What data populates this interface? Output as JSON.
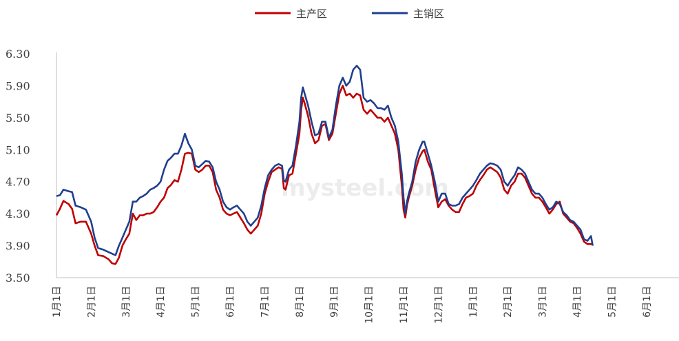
{
  "chart_data": {
    "type": "line",
    "title": "",
    "xlabel": "",
    "ylabel": "",
    "ylim": [
      3.5,
      6.3
    ],
    "yticks": [
      "6.30",
      "5.90",
      "5.50",
      "5.10",
      "4.70",
      "4.30",
      "3.90",
      "3.50"
    ],
    "xticks": [
      "1月1日",
      "2月1日",
      "3月1日",
      "4月1日",
      "5月1日",
      "6月1日",
      "7月1日",
      "8月1日",
      "9月1日",
      "10月1日",
      "11月1日",
      "12月1日",
      "1月1日",
      "2月1日",
      "3月1日",
      "4月1日",
      "5月1日",
      "6月1日"
    ],
    "legend_position": "top-center",
    "grid": false,
    "watermark": "mysteel.com",
    "series": [
      {
        "name": "主产区",
        "color": "#C00000",
        "points": [
          [
            0,
            4.28
          ],
          [
            0.1,
            4.36
          ],
          [
            0.2,
            4.46
          ],
          [
            0.35,
            4.42
          ],
          [
            0.45,
            4.36
          ],
          [
            0.55,
            4.18
          ],
          [
            0.7,
            4.2
          ],
          [
            0.85,
            4.2
          ],
          [
            1.0,
            4.05
          ],
          [
            1.1,
            3.9
          ],
          [
            1.2,
            3.78
          ],
          [
            1.35,
            3.77
          ],
          [
            1.5,
            3.73
          ],
          [
            1.6,
            3.68
          ],
          [
            1.7,
            3.67
          ],
          [
            1.8,
            3.75
          ],
          [
            1.9,
            3.9
          ],
          [
            2.0,
            3.98
          ],
          [
            2.1,
            4.05
          ],
          [
            2.2,
            4.3
          ],
          [
            2.3,
            4.22
          ],
          [
            2.4,
            4.28
          ],
          [
            2.5,
            4.28
          ],
          [
            2.6,
            4.3
          ],
          [
            2.7,
            4.3
          ],
          [
            2.8,
            4.32
          ],
          [
            2.9,
            4.38
          ],
          [
            3.0,
            4.45
          ],
          [
            3.1,
            4.5
          ],
          [
            3.2,
            4.62
          ],
          [
            3.3,
            4.66
          ],
          [
            3.4,
            4.72
          ],
          [
            3.5,
            4.7
          ],
          [
            3.6,
            4.85
          ],
          [
            3.7,
            5.05
          ],
          [
            3.8,
            5.06
          ],
          [
            3.9,
            5.05
          ],
          [
            4.0,
            4.85
          ],
          [
            4.1,
            4.82
          ],
          [
            4.2,
            4.85
          ],
          [
            4.3,
            4.9
          ],
          [
            4.4,
            4.9
          ],
          [
            4.5,
            4.82
          ],
          [
            4.6,
            4.6
          ],
          [
            4.7,
            4.5
          ],
          [
            4.8,
            4.35
          ],
          [
            4.9,
            4.3
          ],
          [
            5.0,
            4.28
          ],
          [
            5.1,
            4.3
          ],
          [
            5.2,
            4.32
          ],
          [
            5.3,
            4.25
          ],
          [
            5.4,
            4.18
          ],
          [
            5.5,
            4.1
          ],
          [
            5.6,
            4.05
          ],
          [
            5.7,
            4.1
          ],
          [
            5.8,
            4.15
          ],
          [
            5.9,
            4.3
          ],
          [
            6.0,
            4.55
          ],
          [
            6.1,
            4.7
          ],
          [
            6.2,
            4.82
          ],
          [
            6.3,
            4.85
          ],
          [
            6.4,
            4.88
          ],
          [
            6.5,
            4.86
          ],
          [
            6.55,
            4.62
          ],
          [
            6.6,
            4.6
          ],
          [
            6.7,
            4.78
          ],
          [
            6.8,
            4.8
          ],
          [
            6.9,
            5.05
          ],
          [
            7.0,
            5.3
          ],
          [
            7.05,
            5.6
          ],
          [
            7.1,
            5.75
          ],
          [
            7.15,
            5.68
          ],
          [
            7.25,
            5.52
          ],
          [
            7.35,
            5.3
          ],
          [
            7.45,
            5.18
          ],
          [
            7.55,
            5.22
          ],
          [
            7.65,
            5.4
          ],
          [
            7.75,
            5.42
          ],
          [
            7.85,
            5.22
          ],
          [
            7.95,
            5.3
          ],
          [
            8.05,
            5.55
          ],
          [
            8.15,
            5.8
          ],
          [
            8.25,
            5.9
          ],
          [
            8.35,
            5.78
          ],
          [
            8.45,
            5.8
          ],
          [
            8.55,
            5.75
          ],
          [
            8.65,
            5.8
          ],
          [
            8.75,
            5.78
          ],
          [
            8.85,
            5.6
          ],
          [
            8.95,
            5.55
          ],
          [
            9.05,
            5.6
          ],
          [
            9.15,
            5.55
          ],
          [
            9.25,
            5.5
          ],
          [
            9.35,
            5.5
          ],
          [
            9.45,
            5.45
          ],
          [
            9.55,
            5.5
          ],
          [
            9.65,
            5.4
          ],
          [
            9.75,
            5.3
          ],
          [
            9.85,
            5.1
          ],
          [
            9.95,
            4.65
          ],
          [
            10.0,
            4.35
          ],
          [
            10.05,
            4.25
          ],
          [
            10.1,
            4.4
          ],
          [
            10.15,
            4.5
          ],
          [
            10.25,
            4.65
          ],
          [
            10.35,
            4.85
          ],
          [
            10.45,
            5.0
          ],
          [
            10.55,
            5.08
          ],
          [
            10.6,
            5.1
          ],
          [
            10.7,
            4.95
          ],
          [
            10.8,
            4.85
          ],
          [
            10.9,
            4.6
          ],
          [
            11.0,
            4.38
          ],
          [
            11.1,
            4.45
          ],
          [
            11.2,
            4.48
          ],
          [
            11.3,
            4.4
          ],
          [
            11.4,
            4.35
          ],
          [
            11.5,
            4.32
          ],
          [
            11.6,
            4.32
          ],
          [
            11.7,
            4.42
          ],
          [
            11.8,
            4.5
          ],
          [
            11.9,
            4.52
          ],
          [
            12.0,
            4.55
          ],
          [
            12.1,
            4.65
          ],
          [
            12.2,
            4.72
          ],
          [
            12.3,
            4.78
          ],
          [
            12.4,
            4.85
          ],
          [
            12.5,
            4.88
          ],
          [
            12.6,
            4.85
          ],
          [
            12.7,
            4.82
          ],
          [
            12.8,
            4.75
          ],
          [
            12.9,
            4.6
          ],
          [
            13.0,
            4.55
          ],
          [
            13.1,
            4.65
          ],
          [
            13.2,
            4.7
          ],
          [
            13.3,
            4.8
          ],
          [
            13.4,
            4.8
          ],
          [
            13.5,
            4.75
          ],
          [
            13.6,
            4.65
          ],
          [
            13.7,
            4.55
          ],
          [
            13.8,
            4.5
          ],
          [
            13.9,
            4.5
          ],
          [
            14.0,
            4.45
          ],
          [
            14.1,
            4.38
          ],
          [
            14.2,
            4.3
          ],
          [
            14.3,
            4.35
          ],
          [
            14.4,
            4.42
          ],
          [
            14.5,
            4.45
          ],
          [
            14.6,
            4.3
          ],
          [
            14.7,
            4.25
          ],
          [
            14.8,
            4.2
          ],
          [
            14.9,
            4.18
          ],
          [
            15.0,
            4.12
          ],
          [
            15.1,
            4.05
          ],
          [
            15.2,
            3.95
          ],
          [
            15.3,
            3.92
          ],
          [
            15.45,
            3.92
          ]
        ]
      },
      {
        "name": "主销区",
        "color": "#1F3F8F",
        "points": [
          [
            0,
            4.52
          ],
          [
            0.1,
            4.53
          ],
          [
            0.2,
            4.6
          ],
          [
            0.35,
            4.58
          ],
          [
            0.45,
            4.57
          ],
          [
            0.55,
            4.4
          ],
          [
            0.7,
            4.38
          ],
          [
            0.85,
            4.35
          ],
          [
            1.0,
            4.2
          ],
          [
            1.1,
            4.0
          ],
          [
            1.2,
            3.87
          ],
          [
            1.35,
            3.85
          ],
          [
            1.5,
            3.82
          ],
          [
            1.6,
            3.8
          ],
          [
            1.7,
            3.78
          ],
          [
            1.8,
            3.9
          ],
          [
            1.9,
            4.0
          ],
          [
            2.0,
            4.1
          ],
          [
            2.1,
            4.2
          ],
          [
            2.2,
            4.45
          ],
          [
            2.3,
            4.45
          ],
          [
            2.4,
            4.5
          ],
          [
            2.5,
            4.52
          ],
          [
            2.6,
            4.55
          ],
          [
            2.7,
            4.6
          ],
          [
            2.8,
            4.62
          ],
          [
            2.9,
            4.65
          ],
          [
            3.0,
            4.7
          ],
          [
            3.1,
            4.85
          ],
          [
            3.2,
            4.96
          ],
          [
            3.3,
            5.0
          ],
          [
            3.4,
            5.05
          ],
          [
            3.5,
            5.05
          ],
          [
            3.6,
            5.15
          ],
          [
            3.7,
            5.3
          ],
          [
            3.8,
            5.18
          ],
          [
            3.9,
            5.1
          ],
          [
            4.0,
            4.9
          ],
          [
            4.1,
            4.88
          ],
          [
            4.2,
            4.92
          ],
          [
            4.3,
            4.96
          ],
          [
            4.4,
            4.95
          ],
          [
            4.5,
            4.88
          ],
          [
            4.6,
            4.7
          ],
          [
            4.7,
            4.6
          ],
          [
            4.8,
            4.45
          ],
          [
            4.9,
            4.38
          ],
          [
            5.0,
            4.35
          ],
          [
            5.1,
            4.38
          ],
          [
            5.2,
            4.4
          ],
          [
            5.3,
            4.35
          ],
          [
            5.4,
            4.3
          ],
          [
            5.5,
            4.2
          ],
          [
            5.6,
            4.15
          ],
          [
            5.7,
            4.2
          ],
          [
            5.8,
            4.25
          ],
          [
            5.9,
            4.4
          ],
          [
            6.0,
            4.62
          ],
          [
            6.1,
            4.78
          ],
          [
            6.2,
            4.85
          ],
          [
            6.3,
            4.9
          ],
          [
            6.4,
            4.92
          ],
          [
            6.5,
            4.9
          ],
          [
            6.55,
            4.72
          ],
          [
            6.6,
            4.7
          ],
          [
            6.7,
            4.85
          ],
          [
            6.8,
            4.9
          ],
          [
            6.9,
            5.15
          ],
          [
            7.0,
            5.45
          ],
          [
            7.05,
            5.75
          ],
          [
            7.1,
            5.88
          ],
          [
            7.15,
            5.8
          ],
          [
            7.25,
            5.65
          ],
          [
            7.35,
            5.45
          ],
          [
            7.45,
            5.28
          ],
          [
            7.55,
            5.3
          ],
          [
            7.65,
            5.45
          ],
          [
            7.75,
            5.45
          ],
          [
            7.85,
            5.25
          ],
          [
            7.95,
            5.35
          ],
          [
            8.05,
            5.65
          ],
          [
            8.15,
            5.9
          ],
          [
            8.25,
            6.0
          ],
          [
            8.35,
            5.9
          ],
          [
            8.45,
            5.95
          ],
          [
            8.55,
            6.1
          ],
          [
            8.65,
            6.15
          ],
          [
            8.75,
            6.1
          ],
          [
            8.85,
            5.75
          ],
          [
            8.95,
            5.7
          ],
          [
            9.05,
            5.72
          ],
          [
            9.15,
            5.68
          ],
          [
            9.25,
            5.62
          ],
          [
            9.35,
            5.62
          ],
          [
            9.45,
            5.6
          ],
          [
            9.55,
            5.65
          ],
          [
            9.65,
            5.5
          ],
          [
            9.75,
            5.4
          ],
          [
            9.85,
            5.2
          ],
          [
            9.95,
            4.8
          ],
          [
            10.0,
            4.5
          ],
          [
            10.05,
            4.3
          ],
          [
            10.1,
            4.45
          ],
          [
            10.15,
            4.55
          ],
          [
            10.25,
            4.7
          ],
          [
            10.35,
            4.95
          ],
          [
            10.45,
            5.1
          ],
          [
            10.55,
            5.2
          ],
          [
            10.6,
            5.2
          ],
          [
            10.7,
            5.05
          ],
          [
            10.8,
            4.9
          ],
          [
            10.9,
            4.7
          ],
          [
            11.0,
            4.45
          ],
          [
            11.1,
            4.55
          ],
          [
            11.2,
            4.55
          ],
          [
            11.3,
            4.42
          ],
          [
            11.4,
            4.4
          ],
          [
            11.5,
            4.4
          ],
          [
            11.6,
            4.42
          ],
          [
            11.7,
            4.5
          ],
          [
            11.8,
            4.55
          ],
          [
            11.9,
            4.6
          ],
          [
            12.0,
            4.65
          ],
          [
            12.1,
            4.72
          ],
          [
            12.2,
            4.8
          ],
          [
            12.3,
            4.85
          ],
          [
            12.4,
            4.9
          ],
          [
            12.5,
            4.93
          ],
          [
            12.6,
            4.92
          ],
          [
            12.7,
            4.9
          ],
          [
            12.8,
            4.85
          ],
          [
            12.9,
            4.7
          ],
          [
            13.0,
            4.65
          ],
          [
            13.1,
            4.72
          ],
          [
            13.2,
            4.78
          ],
          [
            13.3,
            4.88
          ],
          [
            13.4,
            4.85
          ],
          [
            13.5,
            4.8
          ],
          [
            13.6,
            4.7
          ],
          [
            13.7,
            4.6
          ],
          [
            13.8,
            4.55
          ],
          [
            13.9,
            4.55
          ],
          [
            14.0,
            4.5
          ],
          [
            14.1,
            4.42
          ],
          [
            14.2,
            4.35
          ],
          [
            14.3,
            4.38
          ],
          [
            14.4,
            4.45
          ],
          [
            14.5,
            4.42
          ],
          [
            14.6,
            4.32
          ],
          [
            14.7,
            4.28
          ],
          [
            14.8,
            4.22
          ],
          [
            14.9,
            4.2
          ],
          [
            15.0,
            4.15
          ],
          [
            15.1,
            4.1
          ],
          [
            15.2,
            3.98
          ],
          [
            15.3,
            3.96
          ],
          [
            15.4,
            4.02
          ],
          [
            15.45,
            3.9
          ]
        ]
      }
    ]
  }
}
